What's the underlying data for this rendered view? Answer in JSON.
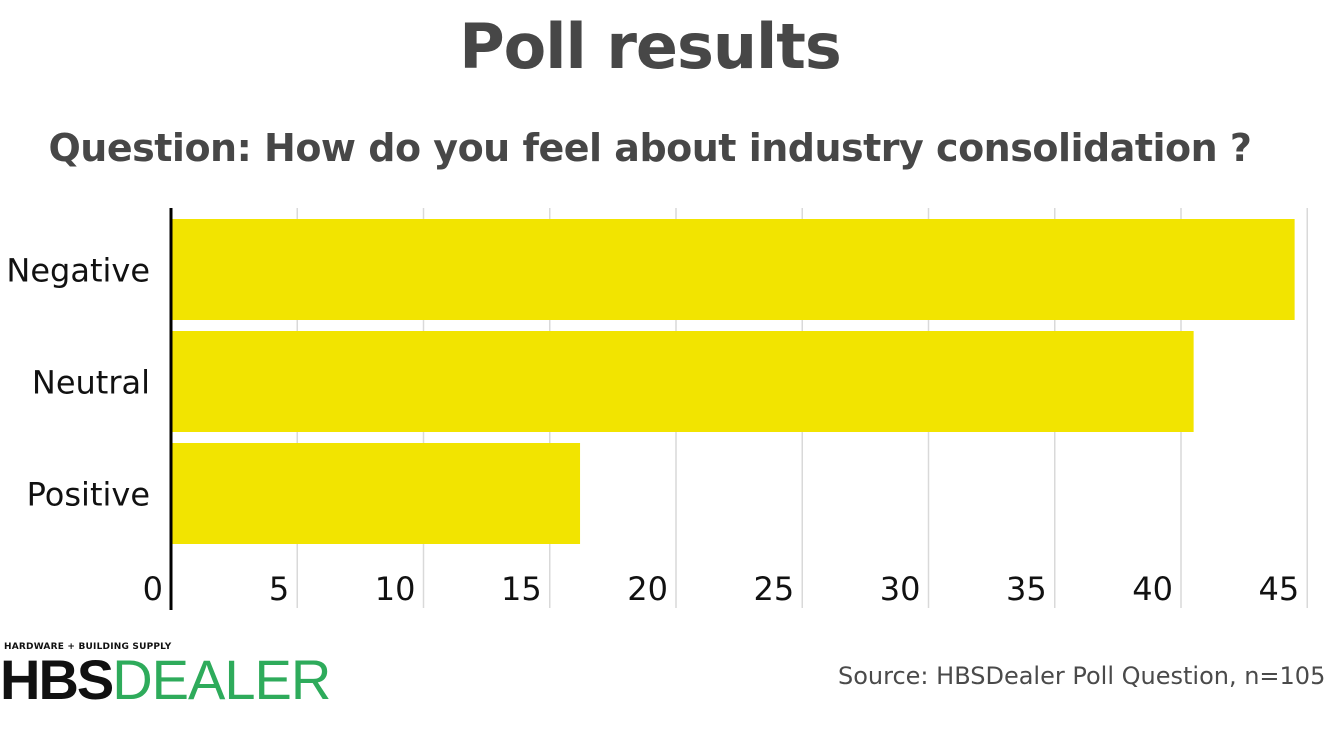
{
  "chart_data": {
    "type": "bar",
    "orientation": "horizontal",
    "title": "Poll results",
    "subtitle": "Question: How do you feel about industry consolidation ?",
    "categories": [
      "Negative",
      "Neutral",
      "Positive"
    ],
    "values": [
      44.5,
      40.5,
      16.2
    ],
    "xlim": [
      0,
      45
    ],
    "x_ticks": [
      "0",
      "5",
      "10",
      "15",
      "20",
      "25",
      "30",
      "35",
      "40",
      "45"
    ],
    "grid": true,
    "bar_color": "#f2e400",
    "grid_color": "#d9d9d9"
  },
  "branding": {
    "tagline": "HARDWARE + BUILDING SUPPLY",
    "logo_part1": "HBS",
    "logo_part2": "DEALER",
    "logo_part1_color": "#111111",
    "logo_part2_color": "#2eab5b"
  },
  "source": "Source: HBSDealer Poll Question, n=105"
}
